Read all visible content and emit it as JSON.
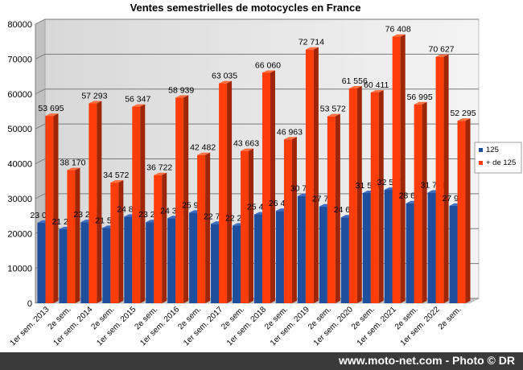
{
  "chart_data": {
    "type": "bar",
    "title": "Ventes semestrielles de motocycles en France",
    "categories": [
      "1er sem. 2013",
      "2e sem.",
      "1er sem. 2014",
      "2e sem.",
      "1er sem. 2015",
      "2e sem.",
      "1er sem. 2016",
      "2e sem.",
      "1er sem. 2017",
      "2e sem.",
      "1er sem. 2018",
      "2e sem.",
      "1er sem. 2019",
      "2e sem.",
      "1er sem. 2020",
      "2e sem.",
      "1er sem. 2021",
      "2e sem.",
      "1er sem. 2022",
      "2e sem."
    ],
    "series": [
      {
        "name": "125",
        "color": "#1f4e9c",
        "values": [
          23076,
          21203,
          23249,
          21595,
          24812,
          23242,
          24377,
          25963,
          22755,
          22278,
          25460,
          26473,
          30732,
          27746,
          24623,
          31591,
          32500,
          28649,
          31721,
          27933
        ],
        "labels": [
          "23 076",
          "21 203",
          "23 249",
          "21 595",
          "24 812",
          "23 242",
          "24 377",
          "25 963",
          "22 755",
          "22 278",
          "25 460",
          "26 473",
          "30 732",
          "27 746",
          "24 623",
          "31 591",
          "32 500",
          "28 649",
          "31 721",
          "27 933"
        ]
      },
      {
        "name": "+ de 125",
        "color": "#ff3d0a",
        "values": [
          53695,
          38170,
          57293,
          34572,
          56347,
          36722,
          58939,
          42482,
          63035,
          43663,
          66060,
          46963,
          72714,
          53572,
          61556,
          60411,
          76408,
          56995,
          70627,
          52295
        ],
        "labels": [
          "53 695",
          "38 170",
          "57 293",
          "34 572",
          "56 347",
          "36 722",
          "58 939",
          "42 482",
          "63 035",
          "43 663",
          "66 060",
          "46 963",
          "72 714",
          "53 572",
          "61 556",
          "60 411",
          "76 408",
          "56 995",
          "70 627",
          "52 295"
        ]
      }
    ],
    "y_ticks": [
      "0",
      "10000",
      "20000",
      "30000",
      "40000",
      "50000",
      "60000",
      "70000",
      "80000"
    ],
    "ylim": [
      0,
      80000
    ],
    "grid": true,
    "legend": "right"
  },
  "footer": {
    "text": "www.moto-net.com - Photo © DR"
  }
}
